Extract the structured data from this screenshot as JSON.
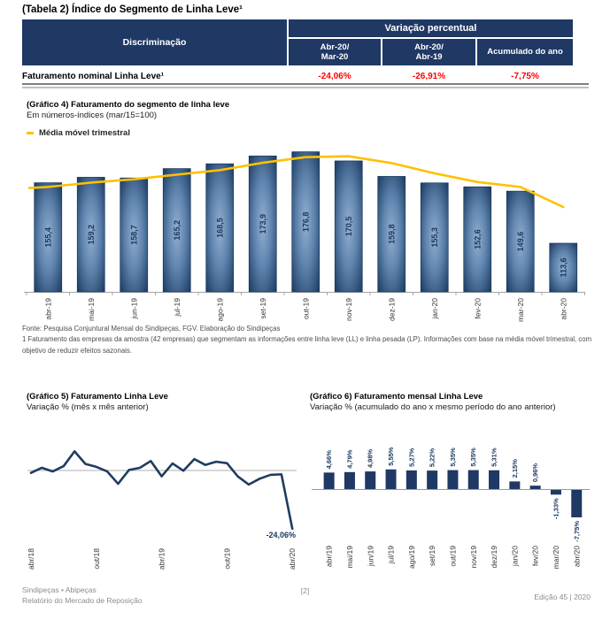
{
  "page": {
    "title": "(Tabela 2) Índice do Segmento de Linha Leve¹"
  },
  "table": {
    "discrimination_header": "Discriminação",
    "group_header": "Variação percentual",
    "columns": [
      {
        "line1": "Abr-20/",
        "line2": "Mar-20"
      },
      {
        "line1": "Abr-20/",
        "line2": "Abr-19"
      },
      {
        "line1": "Acumulado do ano",
        "line2": ""
      }
    ],
    "row": {
      "label": "Faturamento nominal Linha Leve¹",
      "values": [
        "-24,06%",
        "-26,91%",
        "-7,75%"
      ]
    }
  },
  "source": {
    "fonte": "Fonte: Pesquisa Conjuntural Mensal do Sindipeças, FGV. Elaboração do Sindipeças",
    "nota": "1 Faturamento das empresas da amostra (42 empresas) que segmentam as informações entre linha leve (LL) e linha pesada (LP). Informações com base na média móvel trimestral, com objetivo de reduzir efeitos sazonais."
  },
  "footer": {
    "left_line1": "Sindipeças • Abipeças",
    "left_line2": "Relatório do Mercado de Reposição",
    "center": "[2]",
    "right": "Edição 45 | 2020"
  },
  "colors": {
    "navy": "#1F3864",
    "bar_edge": "#17375E",
    "bar_center": "#93AFD0",
    "gold": "#FFC000",
    "red": "#FF0000",
    "axis_gray": "#A6A6A6",
    "grid_gray": "#BFBFBF",
    "label_gray": "#333333"
  },
  "chart_data": [
    {
      "type": "bar",
      "title": "(Gráfico 4) Faturamento do segmento de linha leve",
      "subtitle": "Em números-índices (mar/15=100)",
      "legend_position": "top-left",
      "categories": [
        "abr-19",
        "mai-19",
        "jun-19",
        "jul-19",
        "ago-19",
        "set-19",
        "out-19",
        "nov-19",
        "dez-19",
        "jan-20",
        "fev-20",
        "mar-20",
        "abr-20"
      ],
      "series": [
        {
          "name": "Índice (mar/15=100)",
          "type": "bar",
          "values": [
            155.4,
            159.2,
            158.7,
            165.2,
            168.5,
            173.9,
            176.8,
            170.5,
            159.8,
            155.3,
            152.6,
            149.6,
            113.6
          ],
          "labels": [
            "155,4",
            "159,2",
            "158,7",
            "165,2",
            "168,5",
            "173,9",
            "176,8",
            "170,5",
            "159,8",
            "155,3",
            "152,6",
            "149,6",
            "113,6"
          ]
        },
        {
          "name": "Média móvel trimestral",
          "type": "line",
          "values": [
            152.5,
            155.5,
            157.8,
            161.0,
            164.1,
            169.2,
            173.1,
            173.7,
            169.0,
            161.9,
            155.9,
            152.5,
            138.6
          ]
        }
      ],
      "ylim": [
        80,
        183
      ],
      "grid": false
    },
    {
      "type": "line",
      "title": "(Gráfico 5) Faturamento Linha Leve",
      "subtitle": "Variação % (mês x mês anterior)",
      "x": [
        "abr/18",
        "mai/18",
        "jun/18",
        "jul/18",
        "ago/18",
        "set/18",
        "out/18",
        "nov/18",
        "dez/18",
        "jan/19",
        "fev/19",
        "mar/19",
        "abr/19",
        "mai/19",
        "jun/19",
        "jul/19",
        "ago/19",
        "set/19",
        "out/19",
        "nov/19",
        "dez/19",
        "jan/20",
        "fev/20",
        "mar/20",
        "abr/20"
      ],
      "values": [
        -1.0,
        1.1,
        -0.4,
        1.8,
        7.9,
        2.7,
        1.5,
        -0.4,
        -5.5,
        0.2,
        1.1,
        3.9,
        -2.4,
        2.9,
        -0.1,
        4.7,
        2.3,
        3.6,
        3.0,
        -2.5,
        -5.8,
        -3.4,
        -1.8,
        -1.6,
        -24.06
      ],
      "x_tick_indices": [
        0,
        6,
        12,
        18,
        24
      ],
      "end_label": "-24,06%",
      "ylim": [
        -25,
        9
      ],
      "grid": "zero-line-only"
    },
    {
      "type": "bar",
      "title": "(Gráfico 6) Faturamento mensal Linha Leve",
      "subtitle": "Variação % (acumulado do ano x mesmo período do ano anterior)",
      "categories": [
        "abr/19",
        "mai/19",
        "jun/19",
        "jul/19",
        "ago/19",
        "set/19",
        "out/19",
        "nov/19",
        "dez/19",
        "jan/20",
        "fev/20",
        "mar/20",
        "abr/20"
      ],
      "values": [
        4.66,
        4.79,
        4.98,
        5.55,
        5.27,
        5.22,
        5.35,
        5.35,
        5.31,
        2.15,
        0.96,
        -1.33,
        -7.75
      ],
      "labels": [
        "4,66%",
        "4,79%",
        "4,98%",
        "5,55%",
        "5,27%",
        "5,22%",
        "5,35%",
        "5,35%",
        "5,31%",
        "2,15%",
        "0,96%",
        "-1,33%",
        "-7,75%"
      ],
      "ylim": [
        -9,
        7
      ],
      "grid": "zero-line-only"
    }
  ]
}
